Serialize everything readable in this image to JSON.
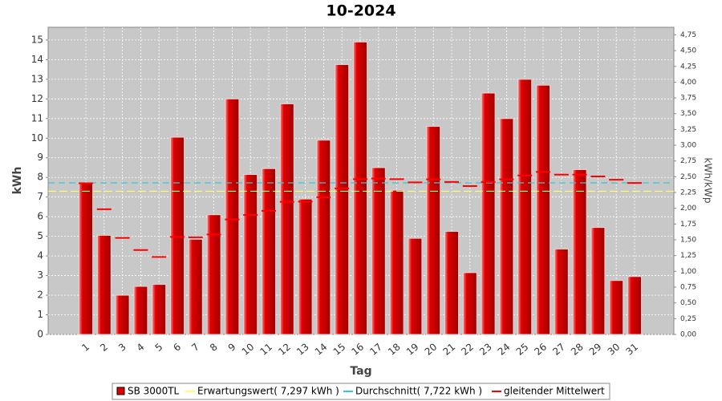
{
  "chart_data": {
    "type": "bar",
    "title": "10-2024",
    "x_label": "Tag",
    "y_label": "kWh",
    "y2_label": "kWh/kWp",
    "categories": [
      "1",
      "2",
      "3",
      "4",
      "5",
      "6",
      "7",
      "8",
      "9",
      "10",
      "11",
      "12",
      "13",
      "14",
      "15",
      "16",
      "17",
      "18",
      "19",
      "20",
      "21",
      "22",
      "23",
      "24",
      "25",
      "26",
      "27",
      "28",
      "29",
      "30",
      "31"
    ],
    "series": [
      {
        "name": "SB 3000TL",
        "color": "#e00000",
        "values": [
          7.7,
          5.05,
          2.0,
          2.45,
          2.55,
          10.05,
          4.85,
          6.1,
          12.0,
          8.15,
          8.45,
          11.75,
          6.9,
          9.9,
          13.75,
          14.9,
          8.5,
          7.35,
          4.9,
          10.6,
          5.25,
          3.15,
          12.3,
          11.0,
          13.0,
          12.7,
          4.35,
          8.4,
          5.45,
          2.75,
          2.95
        ]
      },
      {
        "name": "Erwartungswert( 7,297 kWh )",
        "color": "#ffff66",
        "value": 7.297
      },
      {
        "name": "Durchschnitt( 7,722 kWh )",
        "color": "#33cccc",
        "value": 7.722
      },
      {
        "name": "gleitender Mittelwert",
        "color": "#ff0000",
        "values": [
          7.7,
          6.38,
          4.92,
          4.3,
          3.95,
          4.97,
          4.95,
          5.09,
          5.86,
          6.09,
          6.3,
          6.76,
          6.77,
          6.99,
          7.44,
          7.91,
          7.94,
          7.91,
          7.75,
          7.9,
          7.77,
          7.56,
          7.77,
          7.9,
          8.1,
          8.28,
          8.14,
          8.14,
          8.05,
          7.88,
          7.72
        ]
      }
    ],
    "ylim": [
      0,
      15.65
    ],
    "yticks": [
      0,
      1,
      2,
      3,
      4,
      5,
      6,
      7,
      8,
      9,
      10,
      11,
      12,
      13,
      14,
      15
    ],
    "y2lim": [
      0,
      4.87
    ],
    "y2ticks": [
      {
        "value": 0,
        "label": "0,00"
      },
      {
        "value": 0.25,
        "label": "0,25"
      },
      {
        "value": 0.5,
        "label": "0,50"
      },
      {
        "value": 0.75,
        "label": "0,75"
      },
      {
        "value": 1,
        "label": "1,00"
      },
      {
        "value": 1.25,
        "label": "1,25"
      },
      {
        "value": 1.5,
        "label": "1,50"
      },
      {
        "value": 1.75,
        "label": "1,75"
      },
      {
        "value": 2,
        "label": "2,00"
      },
      {
        "value": 2.25,
        "label": "2,25"
      },
      {
        "value": 2.5,
        "label": "2,50"
      },
      {
        "value": 2.75,
        "label": "2,75"
      },
      {
        "value": 3,
        "label": "3,00"
      },
      {
        "value": 3.25,
        "label": "3,25"
      },
      {
        "value": 3.5,
        "label": "3,50"
      },
      {
        "value": 3.75,
        "label": "3,75"
      },
      {
        "value": 4,
        "label": "4,00"
      },
      {
        "value": 4.25,
        "label": "4,25"
      },
      {
        "value": 4.5,
        "label": "4,50"
      },
      {
        "value": 4.75,
        "label": "4,75"
      }
    ],
    "grid": true
  }
}
